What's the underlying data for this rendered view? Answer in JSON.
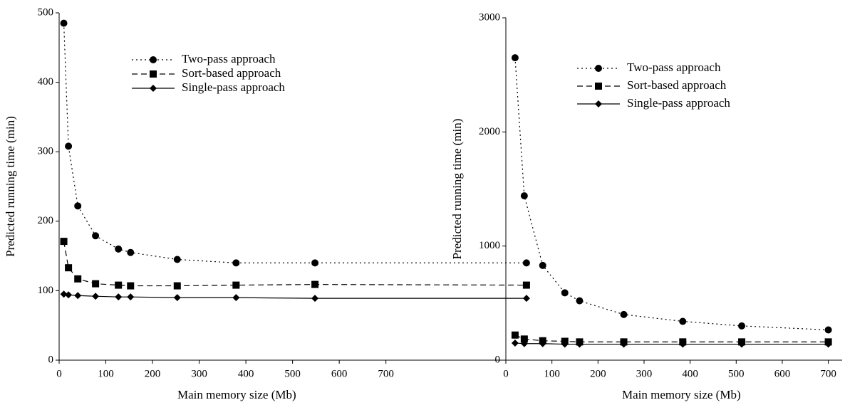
{
  "chart_data": [
    {
      "type": "line",
      "y_label": "Predicted running time (min)",
      "x_label": "Main memory size (Mb)",
      "xlim": [
        0,
        1050
      ],
      "xticks": [
        0,
        100,
        200,
        300,
        400,
        500,
        600,
        700
      ],
      "ylim": [
        0,
        500
      ],
      "yticks": [
        0,
        100,
        200,
        300,
        400,
        500
      ],
      "x": [
        10,
        20,
        40,
        78,
        127,
        153,
        253,
        379,
        548,
        1001
      ],
      "series": [
        {
          "name": "Two-pass approach",
          "color": "#000000",
          "dash": "dotted",
          "marker": "circle",
          "values": [
            485,
            308,
            222,
            179,
            160,
            155,
            145,
            140,
            140,
            140
          ]
        },
        {
          "name": "Sort-based approach",
          "color": "#000000",
          "dash": "dashed",
          "marker": "square",
          "values": [
            171,
            133,
            117,
            110,
            108,
            107,
            107,
            108,
            109,
            108
          ]
        },
        {
          "name": "Single-pass approach",
          "color": "#000000",
          "dash": "solid",
          "marker": "diamond",
          "values": [
            95,
            94,
            93,
            92,
            91,
            91,
            90,
            90,
            89,
            89
          ]
        }
      ]
    },
    {
      "type": "line",
      "y_label": "Predicted running time (min)",
      "x_label": "Main memory size (Mb)",
      "xlim": [
        0,
        730
      ],
      "xticks": [
        0,
        100,
        200,
        300,
        400,
        500,
        600,
        700
      ],
      "ylim": [
        0,
        3000
      ],
      "yticks": [
        0,
        1000,
        2000,
        3000
      ],
      "x": [
        20,
        40,
        80,
        128,
        160,
        256,
        384,
        512,
        700
      ],
      "series": [
        {
          "name": "Two-pass approach",
          "color": "#000000",
          "dash": "dotted",
          "marker": "circle",
          "values": [
            2650,
            1440,
            830,
            590,
            520,
            400,
            340,
            300,
            265
          ]
        },
        {
          "name": "Sort-based approach",
          "color": "#000000",
          "dash": "dashed",
          "marker": "square",
          "values": [
            220,
            185,
            170,
            165,
            160,
            160,
            160,
            160,
            160
          ]
        },
        {
          "name": "Single-pass approach",
          "color": "#000000",
          "dash": "solid",
          "marker": "diamond",
          "values": [
            150,
            145,
            145,
            140,
            140,
            140,
            140,
            140,
            140
          ]
        }
      ]
    }
  ]
}
